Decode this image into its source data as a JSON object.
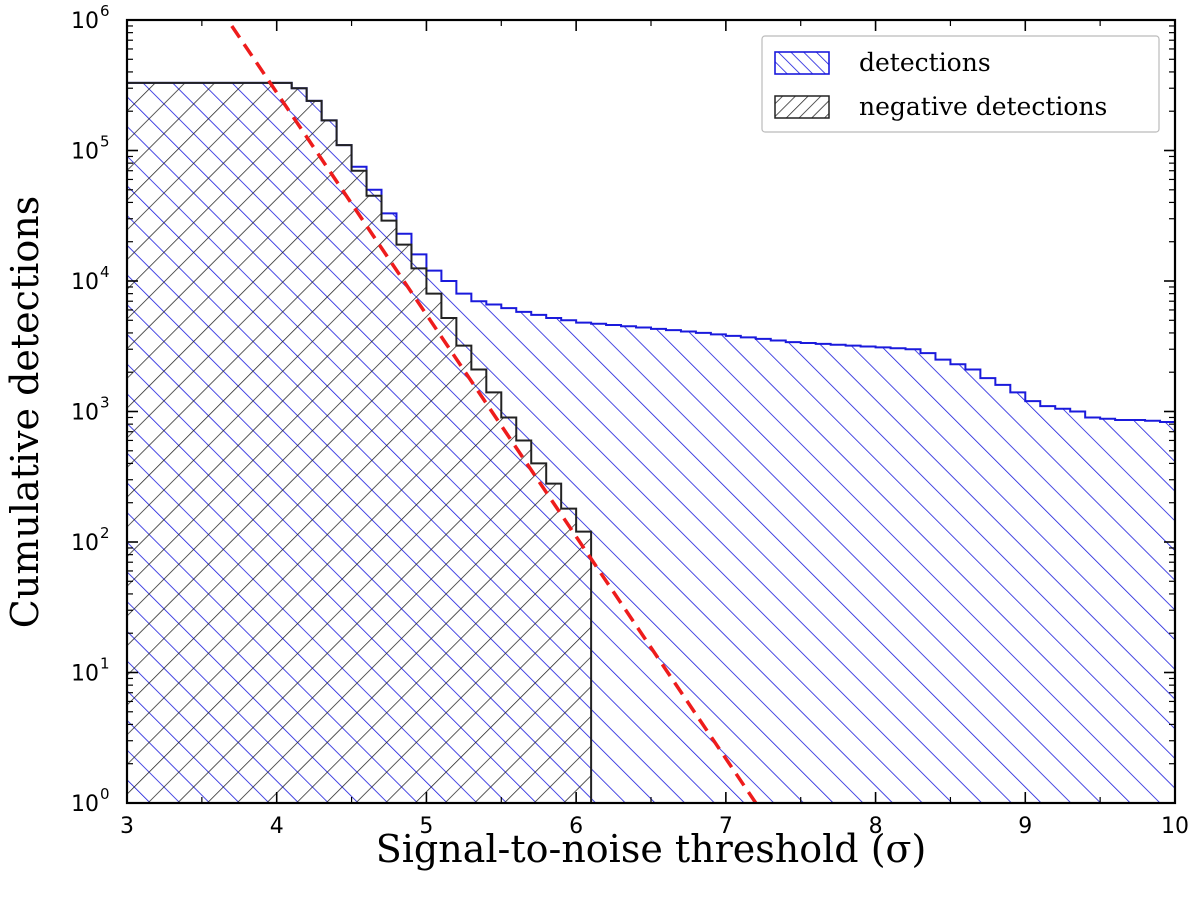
{
  "chart_data": {
    "type": "area",
    "xlabel": "Signal-to-noise threshold (σ)",
    "ylabel": "Cumulative detections",
    "xlim": [
      3,
      10
    ],
    "ylim": [
      1,
      1000000
    ],
    "y_scale": "log",
    "grid": false,
    "legend_placement": "top-right",
    "x_ticks": [
      "3",
      "4",
      "5",
      "6",
      "7",
      "8",
      "9",
      "10"
    ],
    "y_ticks": [
      {
        "base": "10",
        "exp": "0"
      },
      {
        "base": "10",
        "exp": "1"
      },
      {
        "base": "10",
        "exp": "2"
      },
      {
        "base": "10",
        "exp": "3"
      },
      {
        "base": "10",
        "exp": "4"
      },
      {
        "base": "10",
        "exp": "5"
      },
      {
        "base": "10",
        "exp": "6"
      }
    ],
    "series": [
      {
        "name": "detections",
        "style": "step-hatched",
        "color": "#1a1adc",
        "hatch": "backslash",
        "x": [
          3.0,
          3.1,
          3.2,
          3.3,
          3.4,
          3.5,
          3.6,
          3.7,
          3.8,
          3.9,
          4.0,
          4.1,
          4.2,
          4.3,
          4.4,
          4.5,
          4.6,
          4.7,
          4.8,
          4.9,
          5.0,
          5.1,
          5.2,
          5.3,
          5.4,
          5.5,
          5.6,
          5.7,
          5.8,
          5.9,
          6.0,
          6.1,
          6.2,
          6.3,
          6.4,
          6.5,
          6.6,
          6.7,
          6.8,
          6.9,
          7.0,
          7.1,
          7.2,
          7.3,
          7.4,
          7.5,
          7.6,
          7.7,
          7.8,
          7.9,
          8.0,
          8.1,
          8.2,
          8.3,
          8.4,
          8.5,
          8.6,
          8.7,
          8.8,
          8.9,
          9.0,
          9.1,
          9.2,
          9.3,
          9.4,
          9.5,
          9.6,
          9.7,
          9.8,
          9.9
        ],
        "values": [
          330000,
          330000,
          330000,
          330000,
          330000,
          330000,
          330000,
          330000,
          330000,
          330000,
          330000,
          300000,
          240000,
          170000,
          110000,
          75000,
          50000,
          33000,
          23000,
          16000,
          12000,
          10000,
          8000,
          7000,
          6600,
          6200,
          5800,
          5500,
          5200,
          5000,
          4800,
          4700,
          4600,
          4500,
          4400,
          4300,
          4200,
          4100,
          4000,
          3900,
          3800,
          3700,
          3600,
          3500,
          3400,
          3350,
          3300,
          3250,
          3200,
          3150,
          3100,
          3050,
          3000,
          2800,
          2500,
          2300,
          2100,
          1800,
          1600,
          1400,
          1200,
          1100,
          1050,
          1000,
          900,
          880,
          860,
          860,
          850,
          830
        ]
      },
      {
        "name": "negative detections",
        "style": "step-hatched",
        "color": "#222222",
        "hatch": "slash",
        "x": [
          3.0,
          3.1,
          3.2,
          3.3,
          3.4,
          3.5,
          3.6,
          3.7,
          3.8,
          3.9,
          4.0,
          4.1,
          4.2,
          4.3,
          4.4,
          4.5,
          4.6,
          4.7,
          4.8,
          4.9,
          5.0,
          5.1,
          5.2,
          5.3,
          5.4,
          5.5,
          5.6,
          5.7,
          5.8,
          5.9,
          6.0
        ],
        "values": [
          330000,
          330000,
          330000,
          330000,
          330000,
          330000,
          330000,
          330000,
          330000,
          330000,
          330000,
          300000,
          240000,
          170000,
          110000,
          70000,
          45000,
          29000,
          19000,
          12500,
          8000,
          5200,
          3200,
          2100,
          1400,
          900,
          600,
          400,
          280,
          180,
          120
        ]
      },
      {
        "name": "",
        "style": "dashed-line",
        "color": "#ee1c1c",
        "x": [
          3.7,
          7.2
        ],
        "values": [
          900000,
          1
        ]
      }
    ]
  }
}
